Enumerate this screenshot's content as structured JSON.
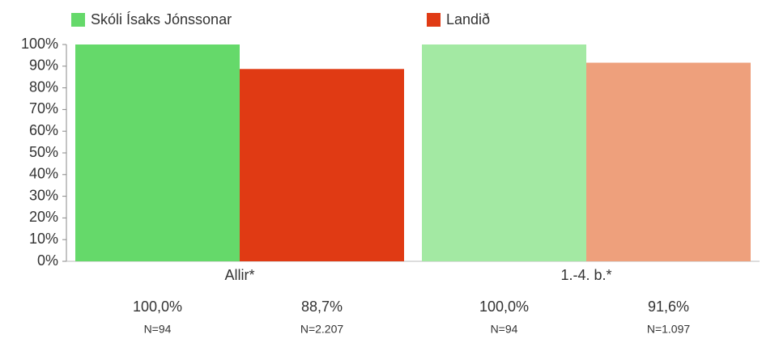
{
  "chart_data": {
    "type": "bar",
    "categories": [
      "Allir*",
      "1.-4. b.*"
    ],
    "series": [
      {
        "name": "Skóli Ísaks Jónssonar",
        "color": "#65d96a",
        "colors": [
          "#65d96a",
          "#a3e9a3"
        ],
        "values": [
          100,
          100
        ],
        "value_labels": [
          "100,0%",
          "100,0%"
        ],
        "n_labels": [
          "N=94",
          "N=94"
        ]
      },
      {
        "name": "Landið",
        "color": "#e03a14",
        "colors": [
          "#e03a14",
          "#eea07c"
        ],
        "values": [
          88.7,
          91.6
        ],
        "value_labels": [
          "88,7%",
          "91,6%"
        ],
        "n_labels": [
          "N=2.207",
          "N=1.097"
        ]
      }
    ],
    "ylim": [
      0,
      100
    ],
    "yticks": [
      {
        "value": 0,
        "label": "0%"
      },
      {
        "value": 10,
        "label": "10%"
      },
      {
        "value": 20,
        "label": "20%"
      },
      {
        "value": 30,
        "label": "30%"
      },
      {
        "value": 40,
        "label": "40%"
      },
      {
        "value": 50,
        "label": "50%"
      },
      {
        "value": 60,
        "label": "60%"
      },
      {
        "value": 70,
        "label": "70%"
      },
      {
        "value": 80,
        "label": "80%"
      },
      {
        "value": 90,
        "label": "90%"
      },
      {
        "value": 100,
        "label": "100%"
      }
    ],
    "legend": "top"
  }
}
